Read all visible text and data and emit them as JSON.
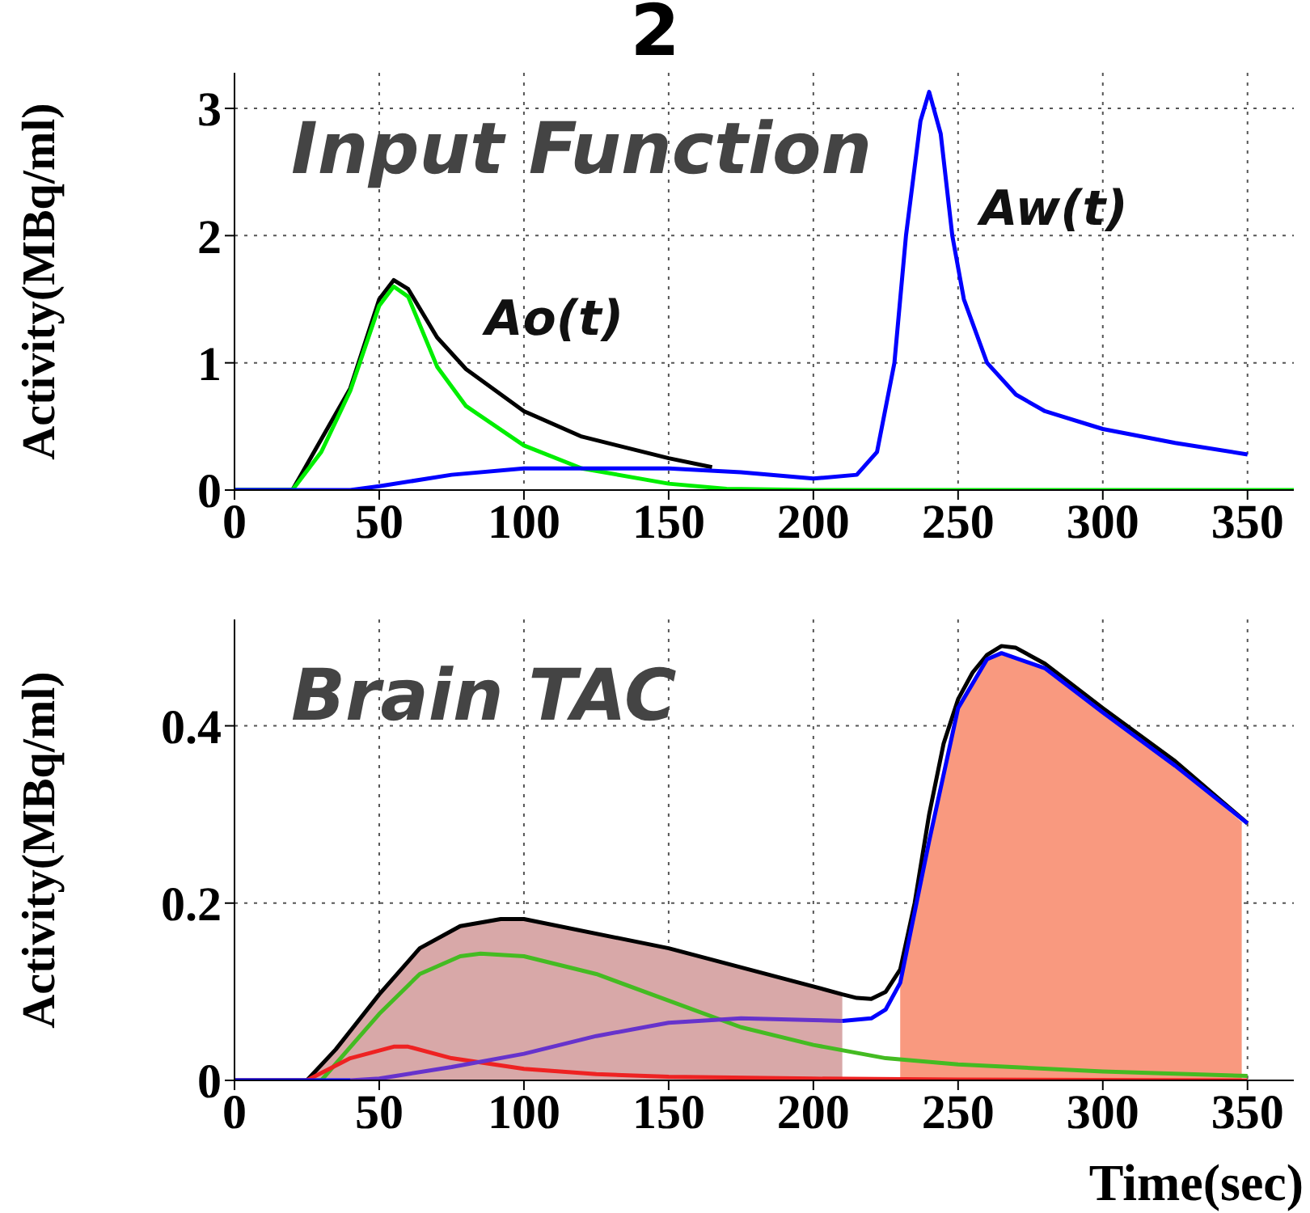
{
  "chart_data": [
    {
      "type": "line",
      "title": "2",
      "ylabel": "Activity(MBq/ml)",
      "xlim": [
        0,
        366
      ],
      "xticks": [
        0,
        50,
        100,
        150,
        200,
        250,
        300,
        350
      ],
      "ylim": [
        0,
        3.28
      ],
      "yticks": [
        0,
        1,
        2,
        3
      ],
      "grid": true,
      "annotations": [
        "Input Function",
        "Ao(t)",
        "Aw(t)"
      ],
      "series": [
        {
          "color": "#000000",
          "x": [
            0,
            20,
            40,
            50,
            55,
            60,
            70,
            80,
            100,
            120,
            150,
            165
          ],
          "values": [
            0,
            0,
            0.8,
            1.5,
            1.65,
            1.58,
            1.2,
            0.95,
            0.62,
            0.42,
            0.25,
            0.18
          ]
        },
        {
          "color": "#00ee00",
          "x": [
            0,
            20,
            30,
            40,
            50,
            55,
            60,
            70,
            80,
            100,
            120,
            150,
            170,
            200,
            366
          ],
          "values": [
            0,
            0,
            0.3,
            0.78,
            1.45,
            1.6,
            1.52,
            0.97,
            0.66,
            0.35,
            0.17,
            0.05,
            0.01,
            0,
            0
          ]
        },
        {
          "color": "#0000ff",
          "x": [
            0,
            40,
            50,
            75,
            100,
            150,
            175,
            200,
            215,
            222,
            228,
            232,
            237,
            240,
            244,
            248,
            252,
            260,
            270,
            280,
            300,
            325,
            350
          ],
          "values": [
            0,
            0,
            0.03,
            0.12,
            0.17,
            0.17,
            0.14,
            0.09,
            0.12,
            0.3,
            1.0,
            2.0,
            2.9,
            3.13,
            2.8,
            2.0,
            1.5,
            1.0,
            0.75,
            0.62,
            0.48,
            0.37,
            0.28
          ]
        }
      ]
    },
    {
      "type": "line",
      "xlabel": "Time(sec)",
      "ylabel": "Activity(MBq/ml)",
      "xlim": [
        0,
        366
      ],
      "xticks": [
        0,
        50,
        100,
        150,
        200,
        250,
        300,
        350
      ],
      "ylim": [
        0,
        0.52
      ],
      "yticks": [
        0,
        0.2,
        0.4
      ],
      "grid": true,
      "annotations": [
        "Brain TAC"
      ],
      "series": [
        {
          "type": "area",
          "color": "#d8a8a8",
          "x": [
            25,
            35,
            50,
            64,
            78,
            92,
            100,
            150,
            200,
            210
          ],
          "values": [
            0,
            0.035,
            0.097,
            0.149,
            0.174,
            0.182,
            0.182,
            0.149,
            0.106,
            0.097
          ]
        },
        {
          "type": "area",
          "color": "#f9997f",
          "x": [
            230,
            240,
            250,
            260,
            265,
            280,
            300,
            325,
            348
          ],
          "values": [
            0.11,
            0.27,
            0.42,
            0.475,
            0.482,
            0.465,
            0.415,
            0.355,
            0.29
          ]
        },
        {
          "color": "#000000",
          "x": [
            25,
            35,
            50,
            64,
            78,
            92,
            100,
            150,
            200,
            210,
            215,
            220,
            225,
            230,
            235,
            240,
            245,
            250,
            255,
            260,
            265,
            270,
            280,
            300,
            325,
            350
          ],
          "values": [
            0,
            0.035,
            0.097,
            0.149,
            0.174,
            0.182,
            0.182,
            0.149,
            0.106,
            0.097,
            0.093,
            0.092,
            0.1,
            0.125,
            0.2,
            0.3,
            0.38,
            0.43,
            0.46,
            0.48,
            0.49,
            0.488,
            0.47,
            0.42,
            0.36,
            0.29
          ]
        },
        {
          "color": "#44bb22",
          "x": [
            0,
            30,
            50,
            64,
            78,
            85,
            100,
            125,
            150,
            175,
            200,
            225,
            250,
            300,
            350
          ],
          "values": [
            0,
            0,
            0.075,
            0.12,
            0.14,
            0.143,
            0.14,
            0.12,
            0.09,
            0.06,
            0.04,
            0.025,
            0.018,
            0.01,
            0.005
          ]
        },
        {
          "color": "#ee2222",
          "x": [
            0,
            25,
            40,
            55,
            60,
            75,
            100,
            125,
            150,
            200,
            250,
            350
          ],
          "values": [
            0,
            0,
            0.025,
            0.038,
            0.038,
            0.025,
            0.013,
            0.007,
            0.004,
            0.002,
            0.001,
            0
          ]
        },
        {
          "color": "#6633cc",
          "x": [
            40,
            50,
            75,
            100,
            125,
            150,
            175,
            200,
            210
          ],
          "values": [
            0,
            0.002,
            0.015,
            0.03,
            0.05,
            0.065,
            0.07,
            0.068,
            0.067
          ]
        },
        {
          "color": "#0000ff",
          "x": [
            0,
            40,
            100,
            210,
            220,
            225,
            230,
            240,
            250,
            260,
            265,
            280,
            300,
            325,
            350
          ],
          "values": [
            0,
            0,
            null,
            0.067,
            0.07,
            0.08,
            0.11,
            0.27,
            0.42,
            0.475,
            0.482,
            0.465,
            0.415,
            0.355,
            0.29
          ]
        }
      ]
    }
  ]
}
